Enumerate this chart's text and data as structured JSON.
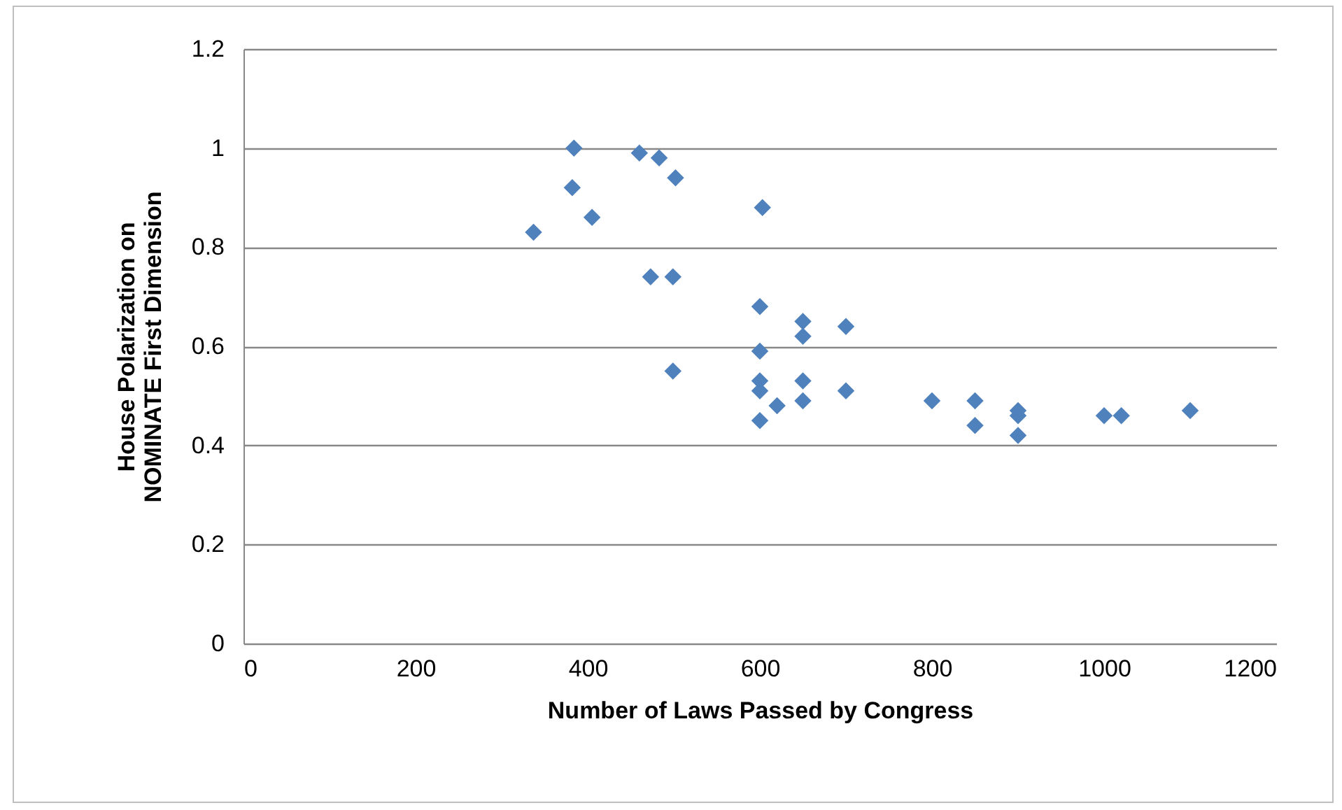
{
  "chart_data": {
    "type": "scatter",
    "xlabel": "Number of Laws Passed by Congress",
    "ylabel": "House Polarization on NOMINATE First Dimension",
    "x": [
      337,
      384,
      382,
      405,
      460,
      483,
      502,
      603,
      473,
      499,
      499,
      600,
      600,
      650,
      650,
      700,
      600,
      600,
      650,
      650,
      620,
      600,
      700,
      800,
      850,
      850,
      900,
      900,
      900,
      1000,
      1020,
      1100
    ],
    "series": [
      {
        "color": "#4f81bd",
        "values": [
          0.83,
          1.0,
          0.92,
          0.86,
          0.99,
          0.98,
          0.94,
          0.88,
          0.74,
          0.74,
          0.55,
          0.68,
          0.59,
          0.65,
          0.62,
          0.64,
          0.53,
          0.51,
          0.53,
          0.49,
          0.48,
          0.45,
          0.51,
          0.49,
          0.49,
          0.44,
          0.47,
          0.46,
          0.42,
          0.46,
          0.46,
          0.47
        ]
      }
    ],
    "xlim": [
      0,
      1200
    ],
    "xticks": [
      0,
      200,
      400,
      600,
      800,
      1000,
      1200
    ],
    "ylim": [
      0,
      1.2
    ],
    "yticks": [
      0,
      0.2,
      0.4,
      0.6,
      0.8,
      1,
      1.2
    ],
    "grid": "y",
    "marker": "diamond"
  }
}
